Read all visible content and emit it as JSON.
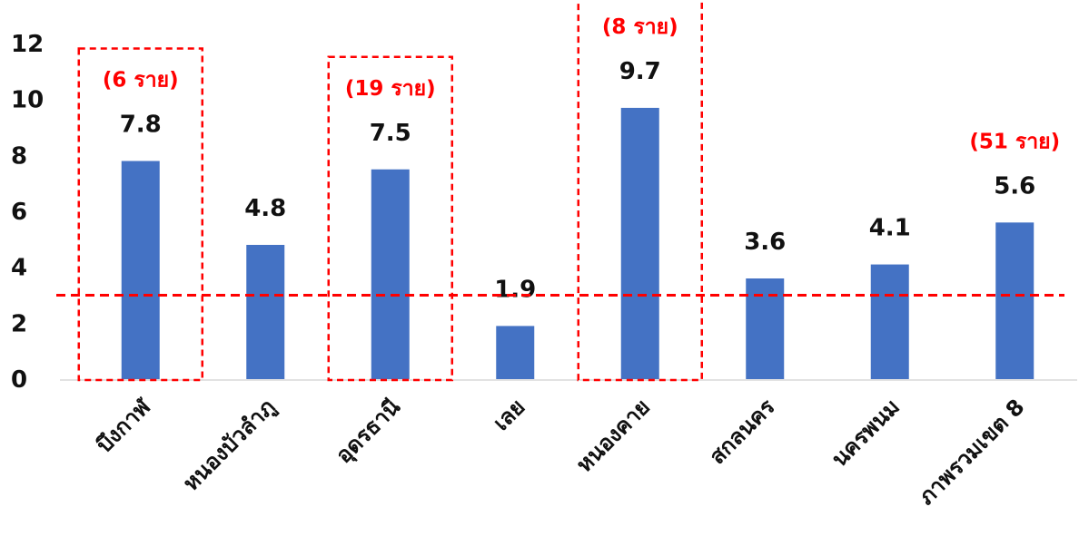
{
  "chart_data": {
    "type": "bar",
    "categories": [
      "บึงกาฬ",
      "หนองบัวลำภู",
      "อุดรธานี",
      "เลย",
      "หนองคาย",
      "สกลนคร",
      "นครพนม",
      "ภาพรวมเขต 8"
    ],
    "values": [
      7.8,
      4.8,
      7.5,
      1.9,
      9.7,
      3.6,
      4.1,
      5.6
    ],
    "data_labels": [
      "7.8",
      "4.8",
      "7.5",
      "1.9",
      "9.7",
      "3.6",
      "4.1",
      "5.6"
    ],
    "yticks": [
      "0",
      "2",
      "4",
      "6",
      "8",
      "10",
      "12"
    ],
    "ylim": [
      0,
      12
    ],
    "bar_color": "#4472c4",
    "reference_line": {
      "value": 3,
      "color": "#ff0000",
      "style": "dashed"
    },
    "highlight_boxes": [
      0,
      2,
      4
    ],
    "annotations": [
      {
        "category_index": 0,
        "text": "(6 ราย)"
      },
      {
        "category_index": 2,
        "text": "(19 ราย)"
      },
      {
        "category_index": 4,
        "text": "(8 ราย)"
      },
      {
        "category_index": 7,
        "text": "(51 ราย)"
      }
    ],
    "annotation_color": "#ff0000",
    "grid": false,
    "legend": "none"
  }
}
